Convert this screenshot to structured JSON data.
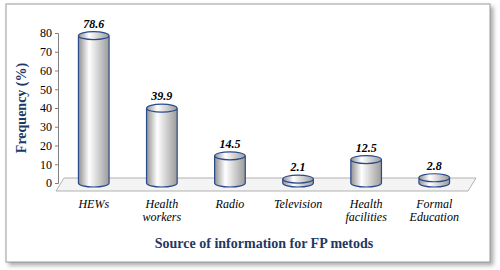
{
  "chart_data": {
    "type": "bar",
    "categories": [
      "HEWs",
      "Health workers",
      "Radio",
      "Television",
      "Health facilities",
      "Formal Education"
    ],
    "values": [
      78.6,
      39.9,
      14.5,
      2.1,
      12.5,
      2.8
    ],
    "color": "#c0c0c0",
    "x_label": "Source of information for FP metods",
    "y_label": "Frequency (%)",
    "ylim": [
      0,
      80
    ],
    "yticks": [
      0,
      10,
      20,
      30,
      40,
      50,
      60,
      70,
      80
    ],
    "data_labels": true,
    "grid": false
  }
}
